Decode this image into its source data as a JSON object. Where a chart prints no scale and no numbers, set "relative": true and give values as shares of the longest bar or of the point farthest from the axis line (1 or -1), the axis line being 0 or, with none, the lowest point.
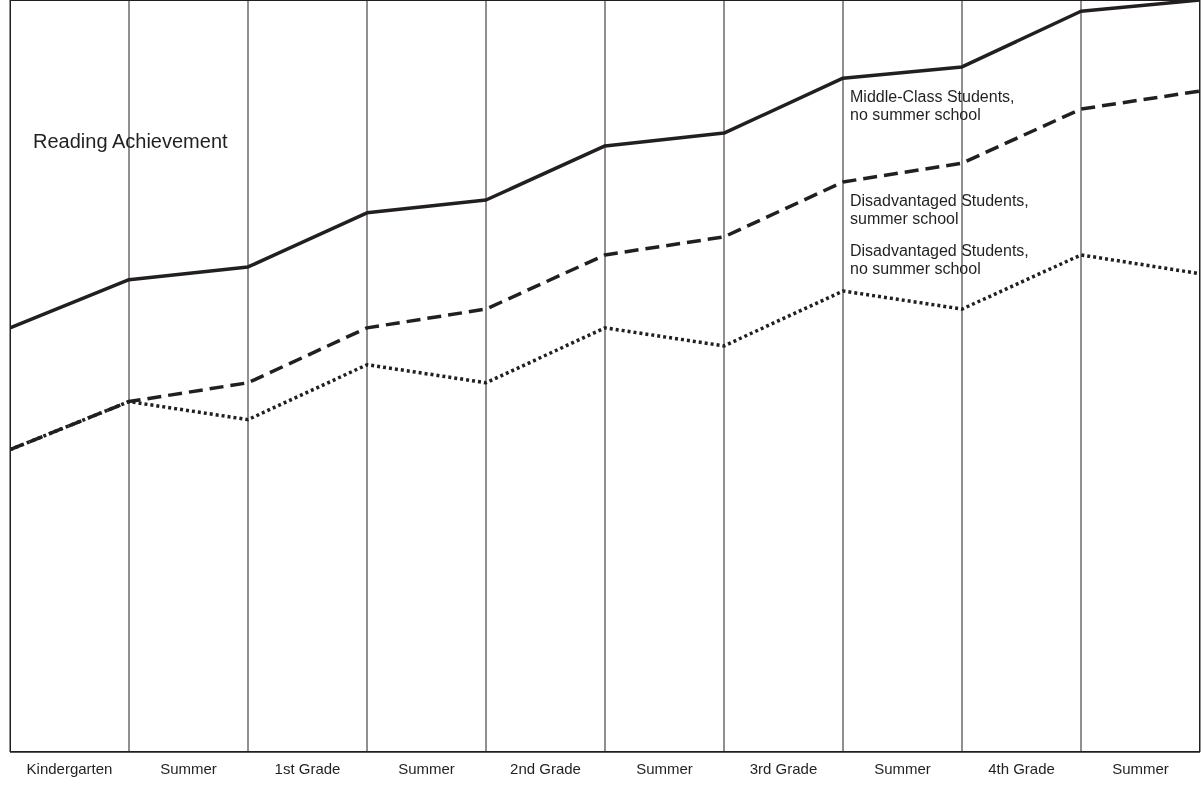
{
  "chart_data": {
    "type": "line",
    "title": "Reading Achievement",
    "relative": true,
    "grid": "x",
    "legend": false,
    "marker": "none",
    "categories": [
      null,
      "Kindergarten",
      null,
      "Summer",
      null,
      "1st Grade",
      null,
      "Summer",
      null,
      "2nd Grade",
      null,
      "Summer",
      null,
      "3rd Grade",
      null,
      "Summer",
      null,
      "4th Grade",
      null,
      "Summer",
      null
    ],
    "series": [
      {
        "name": "Middle-Class Students, no summer school",
        "color": "#231f20",
        "line_style": "solid",
        "values": [
          0.564,
          null,
          0.628,
          null,
          0.645,
          null,
          0.717,
          null,
          0.734,
          null,
          0.806,
          null,
          0.823,
          null,
          0.896,
          null,
          0.911,
          null,
          0.985,
          null,
          1
        ]
      },
      {
        "name": "Disadvantaged Students, summer school",
        "color": "#231f20",
        "line_style": "dashed",
        "values": [
          0.402,
          null,
          0.466,
          null,
          0.491,
          null,
          0.564,
          null,
          0.589,
          null,
          0.661,
          null,
          0.685,
          null,
          0.758,
          null,
          0.783,
          null,
          0.855,
          null,
          0.879
        ]
      },
      {
        "name": "Disadvantaged Students, no summer school",
        "color": "#231f20",
        "line_style": "dotted",
        "values": [
          0.402,
          null,
          0.466,
          null,
          0.442,
          null,
          0.515,
          null,
          0.491,
          null,
          0.564,
          null,
          0.54,
          null,
          0.613,
          null,
          0.589,
          null,
          0.661,
          null,
          0.636
        ]
      }
    ]
  }
}
